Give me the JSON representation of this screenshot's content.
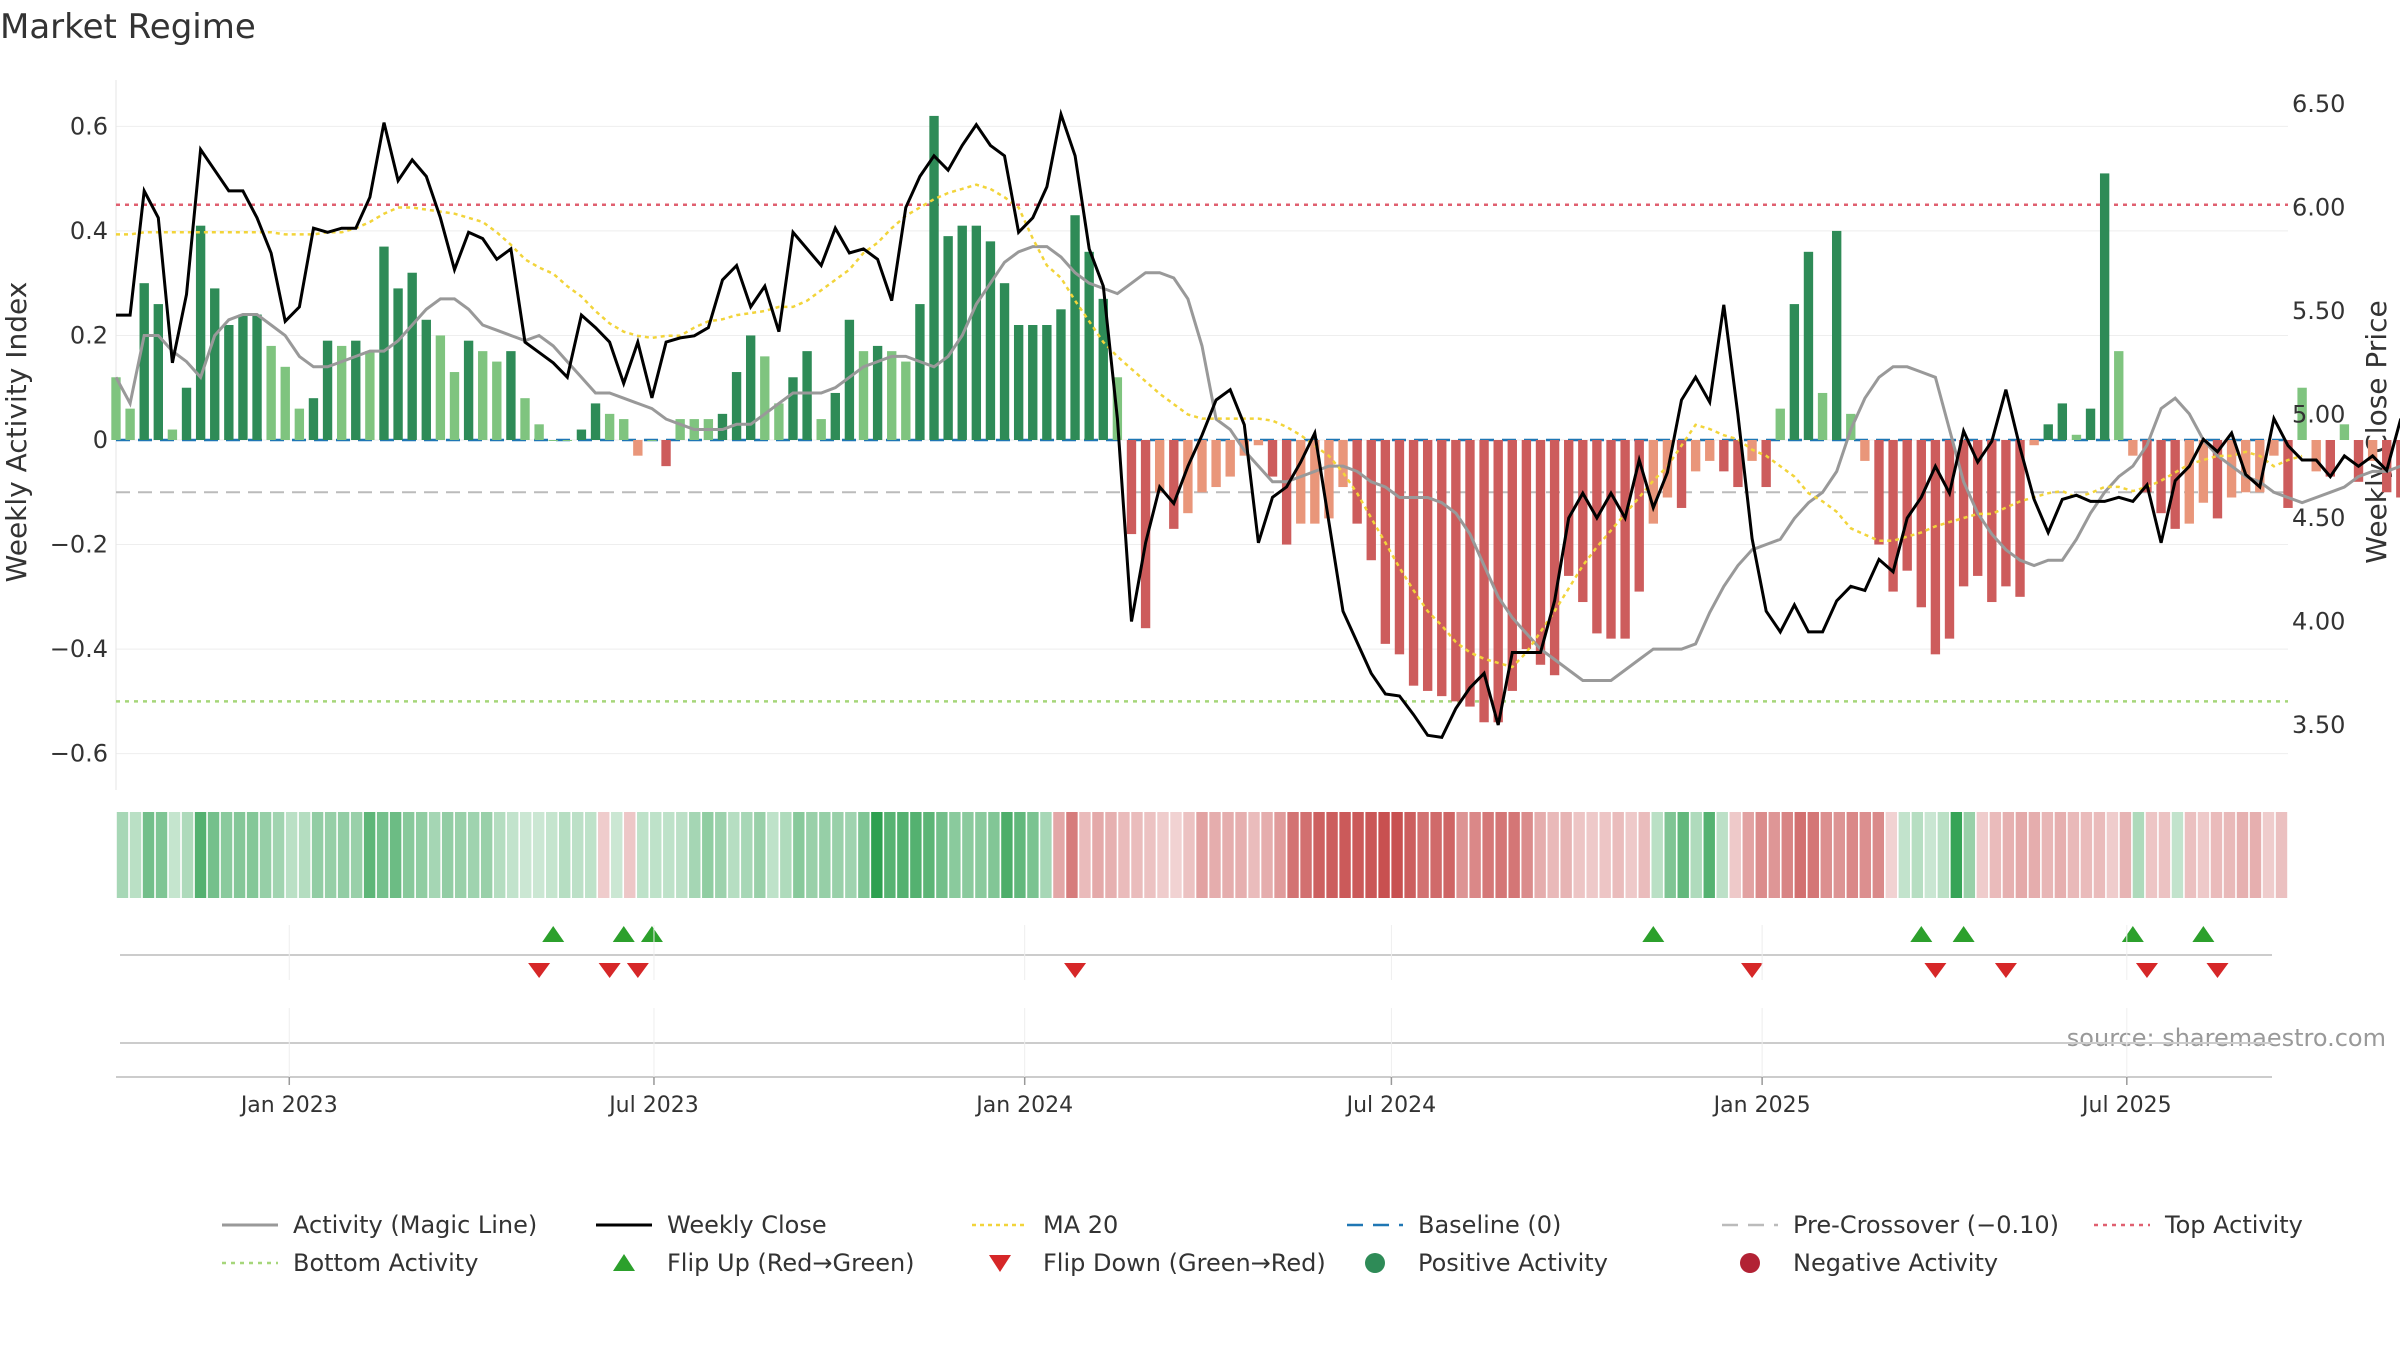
{
  "title": "Market Regime",
  "source": "source: sharemaestro.com",
  "colors": {
    "strong_green": "#2e8b57",
    "light_green": "#7fc47f",
    "strong_red": "#cd5c5c",
    "light_red": "#e9967a",
    "activity_line": "#999999",
    "close_line": "#000000",
    "ma_line": "#f2d43a",
    "baseline": "#1f77b4",
    "precross": "#bbbbbb",
    "top_line": "#e06070",
    "bottom_line": "#a6d67a",
    "flip_up": "#2ca02c",
    "flip_down": "#d62728"
  },
  "chart_data": {
    "type": "bar",
    "y_left_label": "Weekly Activity Index",
    "y_right_label": "Weekly Close Price",
    "y_left_ticks": [
      "0.6",
      "0.4",
      "0.2",
      "0",
      "−0.2",
      "−0.4",
      "−0.6"
    ],
    "y_left_values": [
      0.6,
      0.4,
      0.2,
      0,
      -0.2,
      -0.4,
      -0.6
    ],
    "y_right_ticks": [
      "6.50",
      "6.00",
      "5.50",
      "5.00",
      "4.50",
      "4.00",
      "3.50"
    ],
    "y_right_values": [
      6.5,
      6.0,
      5.5,
      5.0,
      4.5,
      4.0,
      3.5
    ],
    "ylim_left": [
      -0.66,
      0.66
    ],
    "ylim_right": [
      3.35,
      6.5
    ],
    "x_range": [
      "2022-10-07",
      "2025-09-19"
    ],
    "x_ticks": [
      {
        "label": "Jan 2023",
        "date": "2023-01-01"
      },
      {
        "label": "Jul 2023",
        "date": "2023-07-01"
      },
      {
        "label": "Jan 2024",
        "date": "2024-01-01"
      },
      {
        "label": "Jul 2024",
        "date": "2024-07-01"
      },
      {
        "label": "Jan 2025",
        "date": "2025-01-01"
      },
      {
        "label": "Jul 2025",
        "date": "2025-07-01"
      }
    ],
    "reference_lines": {
      "baseline": 0,
      "pre_crossover": -0.1,
      "top_activity": 0.45,
      "bottom_activity": -0.5
    },
    "series": [
      {
        "name": "Activity (Magic Line)",
        "values": [
          0.12,
          0.07,
          0.2,
          0.2,
          0.17,
          0.15,
          0.12,
          0.2,
          0.23,
          0.24,
          0.24,
          0.22,
          0.2,
          0.16,
          0.14,
          0.14,
          0.15,
          0.16,
          0.17,
          0.17,
          0.19,
          0.22,
          0.25,
          0.27,
          0.27,
          0.25,
          0.22,
          0.21,
          0.2,
          0.19,
          0.2,
          0.18,
          0.15,
          0.12,
          0.09,
          0.09,
          0.08,
          0.07,
          0.06,
          0.04,
          0.03,
          0.02,
          0.02,
          0.02,
          0.03,
          0.03,
          0.05,
          0.07,
          0.09,
          0.09,
          0.09,
          0.1,
          0.12,
          0.14,
          0.15,
          0.16,
          0.16,
          0.15,
          0.14,
          0.16,
          0.2,
          0.26,
          0.3,
          0.34,
          0.36,
          0.37,
          0.37,
          0.35,
          0.32,
          0.3,
          0.29,
          0.28,
          0.3,
          0.32,
          0.32,
          0.31,
          0.27,
          0.18,
          0.04,
          0.02,
          -0.02,
          -0.05,
          -0.08,
          -0.08,
          -0.07,
          -0.06,
          -0.05,
          -0.05,
          -0.06,
          -0.08,
          -0.09,
          -0.11,
          -0.11,
          -0.11,
          -0.12,
          -0.14,
          -0.18,
          -0.24,
          -0.3,
          -0.34,
          -0.37,
          -0.4,
          -0.42,
          -0.44,
          -0.46,
          -0.46,
          -0.46,
          -0.44,
          -0.42,
          -0.4,
          -0.4,
          -0.4,
          -0.39,
          -0.33,
          -0.28,
          -0.24,
          -0.21,
          -0.2,
          -0.19,
          -0.15,
          -0.12,
          -0.1,
          -0.06,
          0.02,
          0.08,
          0.12,
          0.14,
          0.14,
          0.13,
          0.12,
          0.02,
          -0.08,
          -0.14,
          -0.18,
          -0.21,
          -0.23,
          -0.24,
          -0.23,
          -0.23,
          -0.19,
          -0.14,
          -0.1,
          -0.07,
          -0.05,
          -0.01,
          0.06,
          0.08,
          0.05,
          0.0,
          -0.03,
          -0.05,
          -0.07,
          -0.08,
          -0.1,
          -0.11,
          -0.12,
          -0.11,
          -0.1,
          -0.09,
          -0.07,
          -0.06,
          -0.06,
          -0.05,
          -0.06,
          -0.05,
          -0.05,
          -0.06,
          -0.08,
          -0.09
        ]
      },
      {
        "name": "Weekly Close",
        "values": [
          5.48,
          5.48,
          6.08,
          5.95,
          5.25,
          5.58,
          6.28,
          6.18,
          6.08,
          6.08,
          5.95,
          5.78,
          5.45,
          5.52,
          5.9,
          5.88,
          5.9,
          5.9,
          6.05,
          6.41,
          6.13,
          6.23,
          6.15,
          5.95,
          5.7,
          5.88,
          5.85,
          5.75,
          5.8,
          5.35,
          5.3,
          5.25,
          5.18,
          5.48,
          5.42,
          5.35,
          5.15,
          5.35,
          5.08,
          5.35,
          5.37,
          5.38,
          5.42,
          5.65,
          5.72,
          5.52,
          5.62,
          5.4,
          5.88,
          5.8,
          5.72,
          5.9,
          5.78,
          5.8,
          5.75,
          5.55,
          6.0,
          6.15,
          6.25,
          6.18,
          6.3,
          6.4,
          6.3,
          6.25,
          5.88,
          5.95,
          6.1,
          6.45,
          6.25,
          5.8,
          5.62,
          4.98,
          4.0,
          4.38,
          4.65,
          4.57,
          4.75,
          4.9,
          5.07,
          5.12,
          4.95,
          4.38,
          4.6,
          4.65,
          4.77,
          4.91,
          4.48,
          4.05,
          3.9,
          3.75,
          3.65,
          3.64,
          3.55,
          3.45,
          3.44,
          3.58,
          3.68,
          3.75,
          3.5,
          3.85,
          3.85,
          3.85,
          4.1,
          4.5,
          4.62,
          4.5,
          4.62,
          4.5,
          4.78,
          4.55,
          4.72,
          5.07,
          5.18,
          5.06,
          5.53,
          5.0,
          4.4,
          4.05,
          3.95,
          4.08,
          3.95,
          3.95,
          4.1,
          4.17,
          4.15,
          4.3,
          4.24,
          4.5,
          4.6,
          4.75,
          4.62,
          4.92,
          4.77,
          4.87,
          5.12,
          4.84,
          4.59,
          4.43,
          4.59,
          4.61,
          4.58,
          4.58,
          4.6,
          4.58,
          4.66,
          4.38,
          4.68,
          4.75,
          4.88,
          4.82,
          4.91,
          4.71,
          4.65,
          4.98,
          4.85,
          4.78,
          4.78,
          4.7,
          4.8,
          4.75,
          4.8,
          4.73,
          4.98
        ]
      },
      {
        "name": "MA 20",
        "values": [
          5.87,
          5.87,
          5.88,
          5.88,
          5.88,
          5.88,
          5.88,
          5.88,
          5.88,
          5.88,
          5.88,
          5.88,
          5.87,
          5.87,
          5.87,
          5.88,
          5.88,
          5.9,
          5.93,
          5.97,
          6.0,
          6.0,
          5.99,
          5.98,
          5.97,
          5.95,
          5.93,
          5.88,
          5.82,
          5.75,
          5.71,
          5.68,
          5.62,
          5.57,
          5.5,
          5.44,
          5.4,
          5.38,
          5.37,
          5.38,
          5.38,
          5.42,
          5.45,
          5.46,
          5.48,
          5.49,
          5.5,
          5.52,
          5.52,
          5.55,
          5.6,
          5.65,
          5.7,
          5.78,
          5.83,
          5.9,
          5.96,
          6.0,
          6.04,
          6.07,
          6.09,
          6.11,
          6.09,
          6.05,
          6.0,
          5.85,
          5.72,
          5.66,
          5.55,
          5.45,
          5.35,
          5.28,
          5.22,
          5.16,
          5.1,
          5.05,
          5.0,
          4.98,
          4.98,
          4.98,
          4.98,
          4.98,
          4.97,
          4.94,
          4.9,
          4.85,
          4.8,
          4.72,
          4.62,
          4.5,
          4.38,
          4.26,
          4.15,
          4.05,
          3.98,
          3.9,
          3.85,
          3.82,
          3.8,
          3.78,
          3.85,
          3.95,
          4.05,
          4.16,
          4.27,
          4.36,
          4.44,
          4.52,
          4.6,
          4.68,
          4.75,
          4.85,
          4.95,
          4.93,
          4.9,
          4.88,
          4.83,
          4.8,
          4.75,
          4.7,
          4.62,
          4.58,
          4.53,
          4.45,
          4.42,
          4.39,
          4.39,
          4.41,
          4.43,
          4.46,
          4.48,
          4.5,
          4.52,
          4.52,
          4.55,
          4.58,
          4.6,
          4.62,
          4.63,
          4.6,
          4.62,
          4.65,
          4.65,
          4.63,
          4.65,
          4.68,
          4.72,
          4.76,
          4.78,
          4.8,
          4.8,
          4.82,
          4.8,
          4.75,
          4.78,
          4.8
        ]
      },
      {
        "name": "Weekly Activity",
        "values": [
          0.12,
          0.06,
          0.3,
          0.26,
          0.02,
          0.1,
          0.41,
          0.29,
          0.22,
          0.24,
          0.24,
          0.18,
          0.14,
          0.06,
          0.08,
          0.19,
          0.18,
          0.19,
          0.17,
          0.37,
          0.29,
          0.32,
          0.23,
          0.2,
          0.13,
          0.19,
          0.17,
          0.15,
          0.17,
          0.08,
          0.03,
          0.0,
          0.0,
          0.02,
          0.07,
          0.05,
          0.04,
          -0.03,
          0.0,
          -0.05,
          0.04,
          0.04,
          0.04,
          0.05,
          0.13,
          0.2,
          0.16,
          0.07,
          0.12,
          0.17,
          0.04,
          0.09,
          0.23,
          0.17,
          0.18,
          0.17,
          0.15,
          0.26,
          0.62,
          0.39,
          0.41,
          0.41,
          0.38,
          0.3,
          0.22,
          0.22,
          0.22,
          0.25,
          0.43,
          0.36,
          0.27,
          0.12,
          -0.18,
          -0.36,
          -0.1,
          -0.17,
          -0.14,
          -0.1,
          -0.09,
          -0.07,
          -0.03,
          -0.01,
          -0.07,
          -0.2,
          -0.16,
          -0.16,
          -0.15,
          -0.09,
          -0.16,
          -0.23,
          -0.39,
          -0.41,
          -0.47,
          -0.48,
          -0.49,
          -0.5,
          -0.51,
          -0.54,
          -0.54,
          -0.48,
          -0.4,
          -0.43,
          -0.45,
          -0.26,
          -0.31,
          -0.37,
          -0.38,
          -0.38,
          -0.29,
          -0.16,
          -0.11,
          -0.13,
          -0.06,
          -0.04,
          -0.06,
          -0.09,
          -0.04,
          -0.09,
          0.06,
          0.26,
          0.36,
          0.09,
          0.4,
          0.05,
          -0.04,
          -0.2,
          -0.29,
          -0.25,
          -0.32,
          -0.41,
          -0.38,
          -0.28,
          -0.26,
          -0.31,
          -0.28,
          -0.3,
          -0.01,
          0.03,
          0.07,
          0.01,
          0.06,
          0.51,
          0.17,
          -0.03,
          -0.1,
          -0.14,
          -0.17,
          -0.16,
          -0.12,
          -0.15,
          -0.11,
          -0.1,
          -0.1,
          -0.03,
          -0.13,
          0.1,
          -0.06,
          -0.07,
          0.03,
          -0.08,
          -0.04,
          -0.1,
          -0.11,
          -0.14,
          -0.15,
          -0.03,
          -0.08
        ]
      }
    ],
    "flip_up_dates": [
      "2023-05-12",
      "2023-06-16",
      "2023-06-30",
      "2024-11-08",
      "2025-03-21",
      "2025-04-11",
      "2025-07-04",
      "2025-08-08"
    ],
    "flip_down_dates": [
      "2023-05-05",
      "2023-06-09",
      "2023-06-23",
      "2024-01-26",
      "2024-12-27",
      "2025-03-28",
      "2025-05-02",
      "2025-07-11",
      "2025-08-15"
    ],
    "legend": [
      {
        "label": "Activity (Magic Line)",
        "style": "line-grey"
      },
      {
        "label": "Weekly Close",
        "style": "line-black"
      },
      {
        "label": "MA 20",
        "style": "dotted-yellow"
      },
      {
        "label": "Baseline (0)",
        "style": "dashed-blue"
      },
      {
        "label": "Pre-Crossover (−0.10)",
        "style": "dashed-grey"
      },
      {
        "label": "Top Activity",
        "style": "dotted-red"
      },
      {
        "label": "Bottom Activity",
        "style": "dotted-green"
      },
      {
        "label": "Flip Up (Red→Green)",
        "style": "tri-up"
      },
      {
        "label": "Flip Down (Green→Red)",
        "style": "tri-down"
      },
      {
        "label": "Positive Activity",
        "style": "dot-green"
      },
      {
        "label": "Negative Activity",
        "style": "dot-red"
      }
    ],
    "legend_placement": "bottom"
  }
}
